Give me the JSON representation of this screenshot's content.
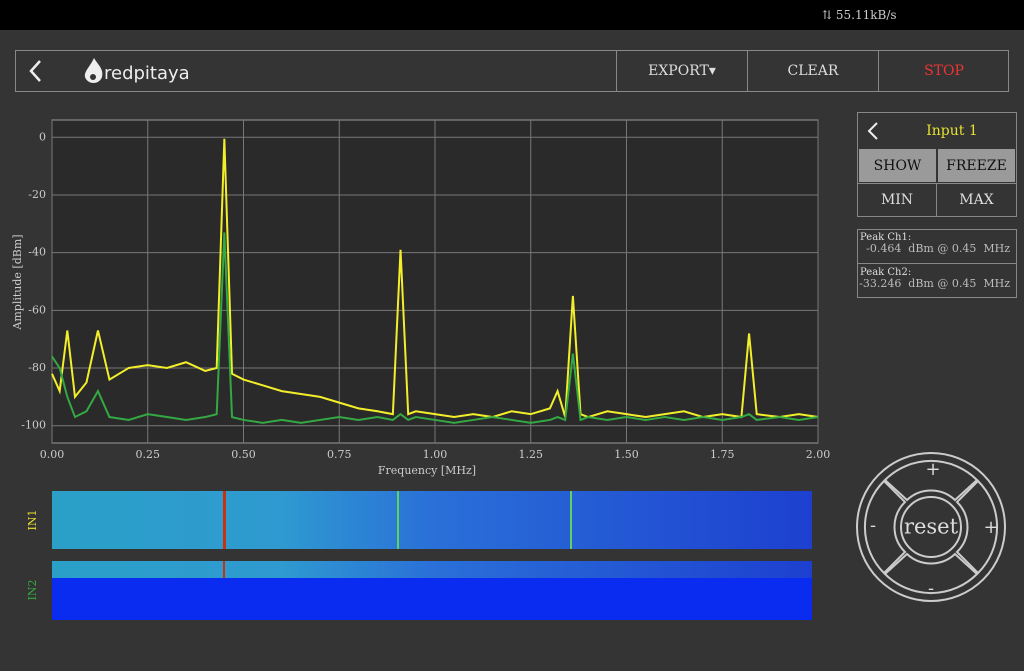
{
  "status_bar": {
    "speed": "55.11kB/s"
  },
  "header": {
    "logo": "redpitaya",
    "buttons": [
      "EXPORT",
      "CLEAR",
      "STOP"
    ]
  },
  "chart_data": {
    "type": "line",
    "x_label": "Frequency  [MHz]",
    "y_label": "Amplitude  [dBm]",
    "x": [
      0,
      0.02,
      0.04,
      0.06,
      0.09,
      0.12,
      0.15,
      0.2,
      0.25,
      0.3,
      0.35,
      0.4,
      0.43,
      0.45,
      0.47,
      0.5,
      0.55,
      0.6,
      0.65,
      0.7,
      0.75,
      0.8,
      0.85,
      0.89,
      0.91,
      0.93,
      0.95,
      1.0,
      1.05,
      1.1,
      1.15,
      1.2,
      1.25,
      1.3,
      1.32,
      1.34,
      1.36,
      1.38,
      1.4,
      1.45,
      1.5,
      1.55,
      1.6,
      1.65,
      1.7,
      1.75,
      1.8,
      1.82,
      1.84,
      1.9,
      1.95,
      2.0
    ],
    "series": [
      {
        "color": "#f2ef2a",
        "values": [
          -82,
          -88,
          -67,
          -90,
          -85,
          -67,
          -84,
          -80,
          -79,
          -80,
          -78,
          -81,
          -80,
          -0.5,
          -82,
          -84,
          -86,
          -88,
          -89,
          -90,
          -92,
          -94,
          -95,
          -96,
          -39,
          -96,
          -95,
          -96,
          -97,
          -96,
          -97,
          -95,
          -96,
          -94,
          -88,
          -97,
          -55,
          -96,
          -97,
          -95,
          -96,
          -97,
          -96,
          -95,
          -97,
          -96,
          -97,
          -68,
          -96,
          -97,
          -96,
          -97
        ]
      },
      {
        "color": "#34a843",
        "values": [
          -76,
          -80,
          -90,
          -97,
          -95,
          -88,
          -97,
          -98,
          -96,
          -97,
          -98,
          -97,
          -96,
          -33,
          -97,
          -98,
          -99,
          -98,
          -99,
          -98,
          -97,
          -98,
          -97,
          -98,
          -96,
          -98,
          -97,
          -98,
          -99,
          -98,
          -97,
          -98,
          -99,
          -98,
          -97,
          -98,
          -75,
          -98,
          -97,
          -98,
          -97,
          -98,
          -97,
          -98,
          -97,
          -98,
          -97,
          -96,
          -98,
          -97,
          -98,
          -97
        ]
      }
    ],
    "xlim": [
      0,
      2
    ],
    "ylim": [
      -106,
      6
    ],
    "xticks": [
      {
        "value": 0,
        "label": "0.00"
      },
      {
        "value": 0.25,
        "label": "0.25"
      },
      {
        "value": 0.5,
        "label": "0.50"
      },
      {
        "value": 0.75,
        "label": "0.75"
      },
      {
        "value": 1,
        "label": "1.00"
      },
      {
        "value": 1.25,
        "label": "1.25"
      },
      {
        "value": 1.5,
        "label": "1.50"
      },
      {
        "value": 1.75,
        "label": "1.75"
      },
      {
        "value": 2,
        "label": "2.00"
      }
    ],
    "yticks": [
      0,
      -20,
      -40,
      -60,
      -80,
      -100
    ],
    "grid": true
  },
  "waterfall": {
    "labels": [
      "IN1",
      "IN2"
    ]
  },
  "panel": {
    "title": "Input 1",
    "buttons": [
      "SHOW",
      "FREEZE",
      "MIN",
      "MAX"
    ],
    "peaks": [
      {
        "label": "Peak  Ch1:",
        "value": "-0.464  dBm @ 0.45  MHz"
      },
      {
        "label": "Peak  Ch2:",
        "value": "-33.246  dBm @ 0.45  MHz"
      }
    ]
  },
  "joystick": {
    "center": "reset",
    "up": "+",
    "down": "-",
    "left": "-",
    "right": "+"
  }
}
